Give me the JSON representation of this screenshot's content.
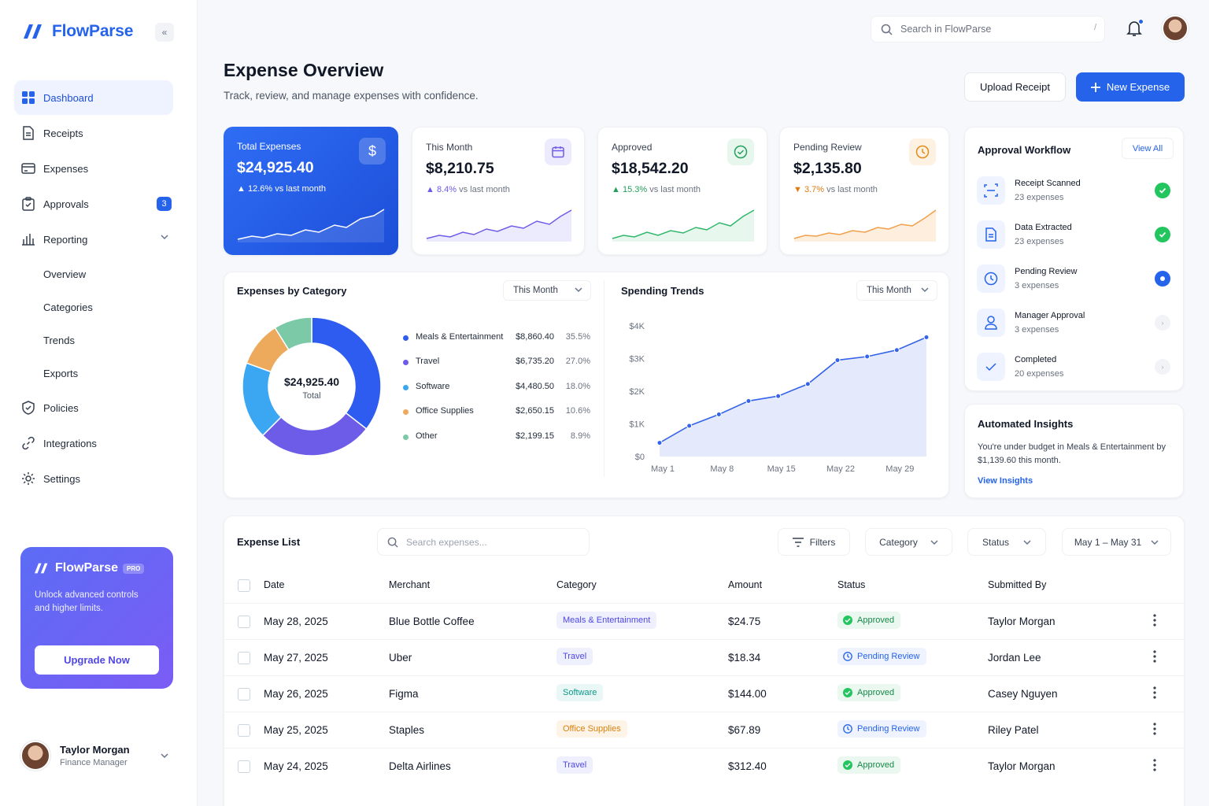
{
  "app": {
    "name": "FlowParse"
  },
  "sidebar": {
    "items": [
      {
        "label": "Dashboard"
      },
      {
        "label": "Receipts"
      },
      {
        "label": "Expenses"
      },
      {
        "label": "Approvals",
        "badge": "3"
      },
      {
        "label": "Reporting"
      },
      {
        "label": "Policies"
      },
      {
        "label": "Integrations"
      },
      {
        "label": "Settings"
      }
    ],
    "reporting_sub": [
      "Overview",
      "Categories",
      "Trends",
      "Exports"
    ],
    "promo": {
      "title": "FlowParse",
      "badge": "PRO",
      "text": "Unlock advanced controls and higher limits.",
      "button": "Upgrade Now"
    },
    "profile": {
      "name": "Taylor Morgan",
      "role": "Finance Manager"
    }
  },
  "topbar": {
    "search_placeholder": "Search in FlowParse",
    "shortcut": "/"
  },
  "header": {
    "title": "Expense Overview",
    "subtitle": "Track, review, and manage expenses with confidence.",
    "upload_label": "Upload Receipt",
    "new_label": "New Expense"
  },
  "stats": [
    {
      "label": "Total Expenses",
      "value": "$24,925.40",
      "change": "12.6%",
      "change_suffix": "vs last month",
      "direction": "up",
      "icon": "dollar-icon"
    },
    {
      "label": "This Month",
      "value": "$8,210.75",
      "change": "8.4%",
      "change_suffix": "vs last month",
      "direction": "up",
      "icon": "calendar-icon"
    },
    {
      "label": "Approved",
      "value": "$18,542.20",
      "change": "15.3%",
      "change_suffix": "vs last month",
      "direction": "up",
      "icon": "check-circle-icon"
    },
    {
      "label": "Pending Review",
      "value": "$2,135.80",
      "change": "3.7%",
      "change_suffix": "vs last month",
      "direction": "down",
      "icon": "clock-icon"
    }
  ],
  "colors": {
    "primary": "#2563eb",
    "purple": "#6d5ce8",
    "green": "#22c55e",
    "orange": "#f59e0b",
    "teal": "#7cc9a7"
  },
  "category": {
    "title": "Expenses by Category",
    "period": "This Month",
    "total": "$24,925.40",
    "total_label": "Total",
    "items": [
      {
        "name": "Meals & Entertainment",
        "value": "$8,860.40",
        "pct": "35.5%",
        "color": "#2f5cf0"
      },
      {
        "name": "Travel",
        "value": "$6,735.20",
        "pct": "27.0%",
        "color": "#6d5ce8"
      },
      {
        "name": "Software",
        "value": "$4,480.50",
        "pct": "18.0%",
        "color": "#3ba7f3"
      },
      {
        "name": "Office Supplies",
        "value": "$2,650.15",
        "pct": "10.6%",
        "color": "#eeaa5c"
      },
      {
        "name": "Other",
        "value": "$2,199.15",
        "pct": "8.9%",
        "color": "#7cc9a7"
      }
    ]
  },
  "trends": {
    "title": "Spending Trends",
    "period": "This Month"
  },
  "chart_data": {
    "type": "area",
    "x": [
      "May 1",
      "May 4",
      "May 8",
      "May 11",
      "May 15",
      "May 18",
      "May 22",
      "May 25",
      "May 29",
      "May 31"
    ],
    "xticks": [
      "May 1",
      "May 8",
      "May 15",
      "May 22",
      "May 29"
    ],
    "yticks": [
      "$4K",
      "$3K",
      "$2K",
      "$1K",
      "$0"
    ],
    "values": [
      420,
      940,
      1290,
      1700,
      1850,
      2220,
      2950,
      3060,
      3260,
      3650
    ],
    "ylim": [
      0,
      4000
    ],
    "grid": false
  },
  "workflow": {
    "title": "Approval Workflow",
    "view_all": "View All",
    "steps": [
      {
        "name": "Receipt Scanned",
        "count": "23 expenses",
        "state": "done",
        "icon": "scan-icon"
      },
      {
        "name": "Data Extracted",
        "count": "23 expenses",
        "state": "done",
        "icon": "document-icon"
      },
      {
        "name": "Pending Review",
        "count": "3 expenses",
        "state": "current",
        "icon": "clock-icon"
      },
      {
        "name": "Manager Approval",
        "count": "3 expenses",
        "state": "todo",
        "icon": "user-icon"
      },
      {
        "name": "Completed",
        "count": "20 expenses",
        "state": "todo",
        "icon": "check-icon"
      }
    ]
  },
  "insights": {
    "title": "Automated Insights",
    "text": "You're under budget in Meals & Entertainment by $1,139.60 this month.",
    "link": "View Insights"
  },
  "list": {
    "title": "Expense List",
    "search_placeholder": "Search expenses...",
    "filters": "Filters",
    "category": "Category",
    "status": "Status",
    "date_range": "May 1 – May 31",
    "columns": [
      "Date",
      "Merchant",
      "Category",
      "Amount",
      "Status",
      "Submitted By"
    ],
    "rows": [
      {
        "date": "May 28, 2025",
        "merchant": "Blue Bottle Coffee",
        "category": "Meals & Entertainment",
        "amount": "$24.75",
        "status": "Approved",
        "by": "Taylor Morgan"
      },
      {
        "date": "May 27, 2025",
        "merchant": "Uber",
        "category": "Travel",
        "amount": "$18.34",
        "status": "Pending Review",
        "by": "Jordan Lee"
      },
      {
        "date": "May 26, 2025",
        "merchant": "Figma",
        "category": "Software",
        "amount": "$144.00",
        "status": "Approved",
        "by": "Casey Nguyen"
      },
      {
        "date": "May 25, 2025",
        "merchant": "Staples",
        "category": "Office Supplies",
        "amount": "$67.89",
        "status": "Pending Review",
        "by": "Riley Patel"
      },
      {
        "date": "May 24, 2025",
        "merchant": "Delta Airlines",
        "category": "Travel",
        "amount": "$312.40",
        "status": "Approved",
        "by": "Taylor Morgan"
      }
    ]
  }
}
